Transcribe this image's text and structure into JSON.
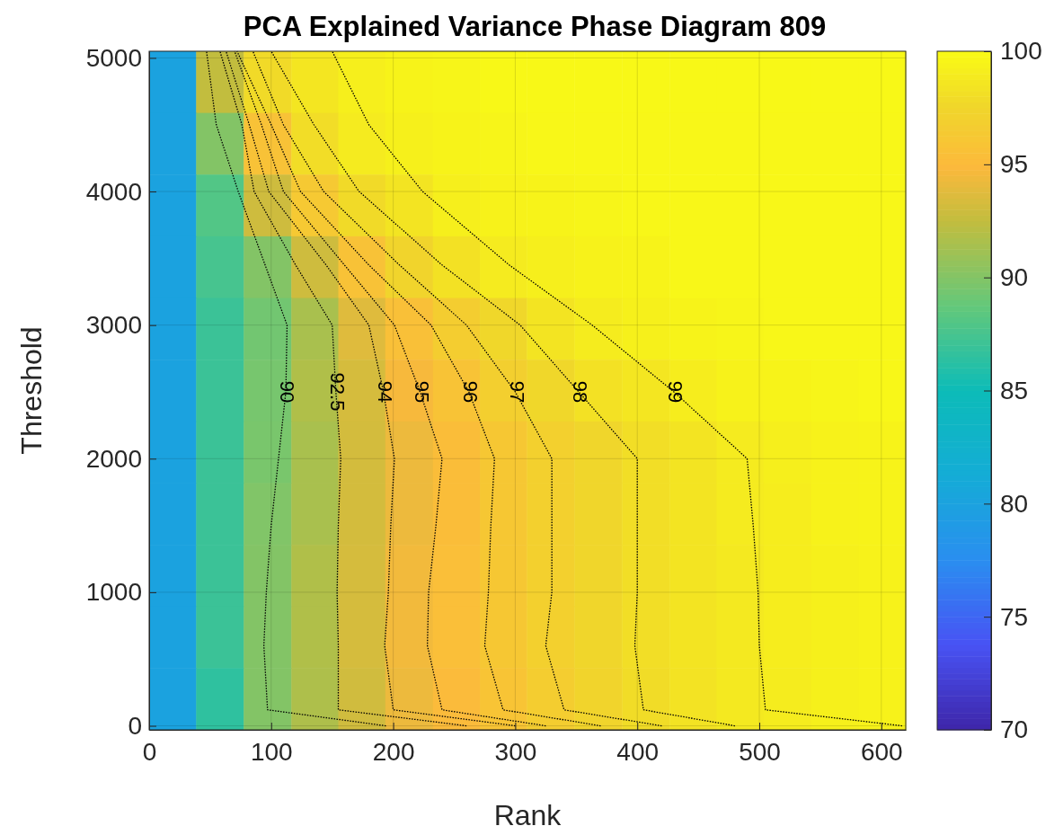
{
  "chart_data": {
    "type": "heatmap",
    "title": "PCA Explained Variance Phase Diagram 809",
    "xlabel": "Rank",
    "ylabel": "Threshold",
    "x": [
      19,
      58,
      97,
      136,
      174,
      213,
      252,
      290,
      329,
      368,
      407,
      446,
      484,
      523,
      562,
      601
    ],
    "cells": [
      [
        80,
        92.5,
        97.8,
        98.6,
        99.2,
        99.5,
        99.6,
        99.8,
        99.8,
        99.8,
        99.8,
        99.8,
        99.8,
        99.8,
        99.8,
        99.8
      ],
      [
        80,
        90,
        95.7,
        98,
        98.9,
        99.3,
        99.5,
        99.6,
        99.7,
        99.7,
        99.7,
        99.7,
        99.7,
        99.7,
        99.7,
        99.7
      ],
      [
        80,
        88,
        93,
        96.3,
        97.8,
        98.5,
        99.2,
        99.4,
        99.5,
        99.6,
        99.7,
        99.7,
        99.7,
        99.7,
        99.7,
        99.7
      ],
      [
        80,
        87.5,
        90,
        93,
        95.7,
        97.3,
        98.3,
        98.9,
        99.2,
        99.4,
        99.5,
        99.7,
        99.7,
        99.7,
        99.7,
        99.7
      ],
      [
        80,
        87,
        89.3,
        91.5,
        93.7,
        95.5,
        96.7,
        97.6,
        98.5,
        99,
        99.3,
        99.5,
        99.6,
        99.7,
        99.7,
        99.7
      ],
      [
        80,
        87,
        89.5,
        91.8,
        93.3,
        94.7,
        95.8,
        96.9,
        97.6,
        98.3,
        98.6,
        99.1,
        99.4,
        99.5,
        99.6,
        99.7
      ],
      [
        80,
        87,
        89.6,
        91.5,
        93.2,
        94.3,
        95.3,
        96.2,
        97,
        97.5,
        98.1,
        98.5,
        98.9,
        99.2,
        99.4,
        99.5
      ],
      [
        80,
        87,
        89.9,
        91.5,
        93.2,
        94.3,
        95.3,
        96.2,
        97,
        97.5,
        98.1,
        98.5,
        98.9,
        99.1,
        99.4,
        99.5
      ],
      [
        80,
        87,
        90,
        91.8,
        93.3,
        94.5,
        95.4,
        96.2,
        97,
        97.5,
        98.1,
        98.5,
        98.8,
        99.1,
        99.3,
        99.4
      ],
      [
        80,
        87,
        90,
        91.8,
        93.3,
        94.5,
        95.4,
        96.2,
        97,
        97.5,
        98.1,
        98.5,
        98.8,
        99.1,
        99.3,
        99.4
      ],
      [
        80,
        86.5,
        90,
        91.7,
        93.1,
        94.3,
        95.1,
        95.9,
        96.7,
        97.3,
        97.9,
        98.4,
        98.8,
        99,
        99.3,
        99.4
      ]
    ],
    "clim": [
      70,
      100
    ],
    "cticks": [
      70,
      75,
      80,
      85,
      90,
      95,
      100
    ],
    "xlim": [
      0,
      620
    ],
    "xticks": [
      0,
      100,
      200,
      300,
      400,
      500,
      600
    ],
    "ylim": [
      -30,
      5050
    ],
    "yticks": [
      0,
      1000,
      2000,
      3000,
      4000,
      5000
    ],
    "grid": true,
    "line_style": "dotted",
    "series": [
      {
        "type": "line",
        "name": "90",
        "color": "#000000",
        "x": [
          194,
          97,
          94,
          96,
          100,
          106,
          112,
          113,
          95,
          73,
          55,
          47
        ],
        "values": [
          0,
          120,
          600,
          1000,
          1500,
          2000,
          2500,
          3000,
          3450,
          4000,
          4500,
          5050
        ]
      },
      {
        "type": "line",
        "name": "92.5",
        "color": "#000000",
        "x": [
          260,
          155,
          155,
          154,
          155,
          157,
          153,
          150,
          120,
          86,
          76,
          58
        ],
        "values": [
          0,
          120,
          600,
          1000,
          1500,
          2000,
          2500,
          3000,
          3450,
          4000,
          4500,
          5050
        ]
      },
      {
        "type": "line",
        "name": "94",
        "color": "#000000",
        "x": [
          300,
          200,
          193,
          196,
          198,
          201,
          192,
          180,
          145,
          98,
          82,
          63
        ],
        "values": [
          0,
          120,
          600,
          1000,
          1500,
          2000,
          2500,
          3000,
          3450,
          4000,
          4500,
          5050
        ]
      },
      {
        "type": "line",
        "name": "95",
        "color": "#000000",
        "x": [
          325,
          240,
          228,
          229,
          235,
          240,
          222,
          201,
          160,
          110,
          92,
          70
        ],
        "values": [
          0,
          120,
          600,
          1000,
          1500,
          2000,
          2500,
          3000,
          3450,
          4000,
          4500,
          5050
        ]
      },
      {
        "type": "line",
        "name": "96",
        "color": "#000000",
        "x": [
          370,
          290,
          275,
          278,
          280,
          283,
          262,
          231,
          180,
          124,
          100,
          72
        ],
        "values": [
          0,
          120,
          600,
          1000,
          1500,
          2000,
          2500,
          3000,
          3450,
          4000,
          4500,
          5050
        ]
      },
      {
        "type": "line",
        "name": "97",
        "color": "#000000",
        "x": [
          420,
          340,
          325,
          330,
          330,
          330,
          300,
          260,
          205,
          143,
          110,
          85
        ],
        "values": [
          0,
          120,
          600,
          1000,
          1500,
          2000,
          2500,
          3000,
          3450,
          4000,
          4500,
          5050
        ]
      },
      {
        "type": "line",
        "name": "98",
        "color": "#000000",
        "x": [
          480,
          405,
          398,
          400,
          400,
          400,
          352,
          304,
          240,
          172,
          135,
          100
        ],
        "values": [
          0,
          120,
          600,
          1000,
          1500,
          2000,
          2500,
          3000,
          3450,
          4000,
          4500,
          5050
        ]
      },
      {
        "type": "line",
        "name": "99",
        "color": "#000000",
        "x": [
          617,
          505,
          500,
          499,
          495,
          490,
          430,
          363,
          295,
          224,
          180,
          150
        ],
        "values": [
          0,
          120,
          600,
          1000,
          1500,
          2000,
          2500,
          3000,
          3450,
          4000,
          4500,
          5050
        ]
      }
    ]
  }
}
